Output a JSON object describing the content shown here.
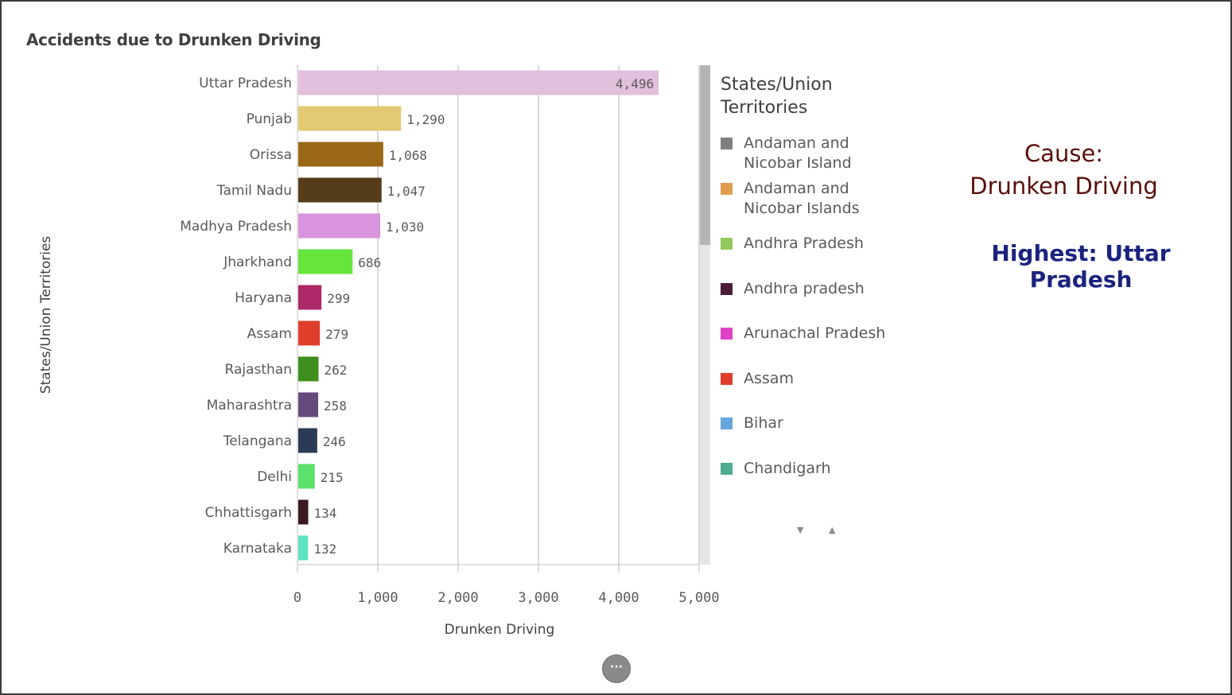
{
  "title": "Accidents due to Drunken Driving",
  "chart_data": {
    "type": "bar",
    "orientation": "horizontal",
    "xlabel": "Drunken Driving",
    "ylabel": "States/Union Territories",
    "xlim": [
      0,
      5000
    ],
    "x_ticks": [
      "0",
      "1,000",
      "2,000",
      "3,000",
      "4,000",
      "5,000"
    ],
    "grid": true,
    "categories": [
      "Uttar Pradesh",
      "Punjab",
      "Orissa",
      "Tamil Nadu",
      "Madhya Pradesh",
      "Jharkhand",
      "Haryana",
      "Assam",
      "Rajasthan",
      "Maharashtra",
      "Telangana",
      "Delhi",
      "Chhattisgarh",
      "Karnataka"
    ],
    "values": [
      4496,
      1290,
      1068,
      1047,
      1030,
      686,
      299,
      279,
      262,
      258,
      246,
      215,
      134,
      132
    ],
    "value_labels": [
      "4,496",
      "1,290",
      "1,068",
      "1,047",
      "1,030",
      "686",
      "299",
      "279",
      "262",
      "258",
      "246",
      "215",
      "134",
      "132"
    ],
    "colors": [
      "#e2bfdc",
      "#e2c972",
      "#9b6817",
      "#553c1a",
      "#d894dc",
      "#66e53c",
      "#ac2866",
      "#e03e2c",
      "#3d8e1c",
      "#654a7c",
      "#2b3a55",
      "#5ce16a",
      "#3c1820",
      "#5de3c2"
    ],
    "legend": {
      "title": "States/Union Territories",
      "placement": "right",
      "items": [
        {
          "label": "Andaman and Nicobar Island",
          "color": "#7f7f7f"
        },
        {
          "label": "Andaman and Nicobar Islands",
          "color": "#e09d52"
        },
        {
          "label": "Andhra Pradesh",
          "color": "#92c95e"
        },
        {
          "label": "Andhra pradesh",
          "color": "#4b1d3a"
        },
        {
          "label": "Arunachal Pradesh",
          "color": "#e042c6"
        },
        {
          "label": "Assam",
          "color": "#e03e2c"
        },
        {
          "label": "Bihar",
          "color": "#67a6dd"
        },
        {
          "label": "Chandigarh",
          "color": "#4fab93"
        }
      ]
    }
  },
  "notes": {
    "cause_line1": "Cause:",
    "cause_line2": "Drunken Driving",
    "highest": "Highest: Uttar Pradesh"
  },
  "controls": {
    "more_button": "···",
    "scroll_down": "▼",
    "scroll_up": "▲"
  }
}
